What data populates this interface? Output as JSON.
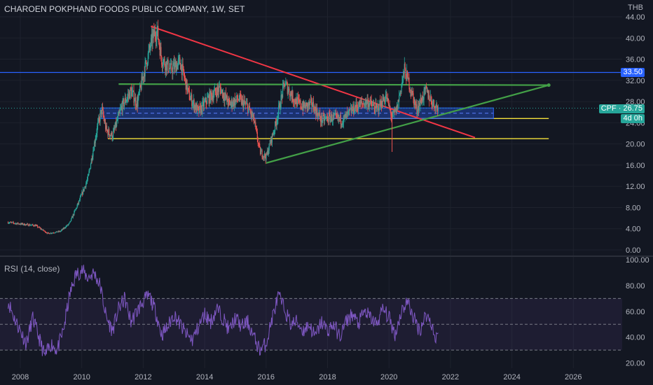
{
  "chart_title": "CHAROEN POKPHAND FOODS PUBLIC COMPANY, 1W, SET",
  "currency": "THB",
  "price_tag": "CPF · 26.75",
  "countdown_tag": "4d 0h",
  "level_tag": "33.50",
  "rsi_label": "RSI (14, close)",
  "colors": {
    "background": "#131722",
    "up": "#26a69a",
    "down": "#ef5350",
    "trend_red": "#f23645",
    "trend_green": "#43a047",
    "support": "#f5e13b",
    "level_line": "#2962ff",
    "zone": "#2962ff",
    "rsi": "#7e57c2"
  },
  "chart_data": [
    {
      "type": "candlestick",
      "title": "CHAROEN POKPHAND FOODS PUBLIC COMPANY, 1W, SET",
      "ylim": [
        0,
        44
      ],
      "yticks": [
        0,
        4,
        8,
        12,
        16,
        20,
        24,
        28,
        32,
        36,
        40,
        44
      ],
      "xlim": [
        2007.6,
        2027.0
      ],
      "xticks": [
        2008,
        2010,
        2012,
        2014,
        2016,
        2018,
        2020,
        2022,
        2024,
        2026
      ],
      "last_price": 26.75,
      "price_path": [
        [
          2007.6,
          5.2
        ],
        [
          2008.0,
          4.9
        ],
        [
          2008.5,
          4.6
        ],
        [
          2008.9,
          3.1
        ],
        [
          2009.3,
          3.5
        ],
        [
          2009.6,
          5.0
        ],
        [
          2009.9,
          9.0
        ],
        [
          2010.2,
          13.5
        ],
        [
          2010.5,
          23.0
        ],
        [
          2010.65,
          26.5
        ],
        [
          2010.8,
          22.5
        ],
        [
          2011.0,
          21.5
        ],
        [
          2011.3,
          27.0
        ],
        [
          2011.6,
          30.0
        ],
        [
          2011.8,
          27.5
        ],
        [
          2012.0,
          33.0
        ],
        [
          2012.3,
          40.0
        ],
        [
          2012.45,
          41.5
        ],
        [
          2012.6,
          36.0
        ],
        [
          2012.9,
          34.0
        ],
        [
          2013.2,
          35.5
        ],
        [
          2013.5,
          29.0
        ],
        [
          2013.8,
          26.0
        ],
        [
          2014.1,
          28.5
        ],
        [
          2014.5,
          30.5
        ],
        [
          2014.8,
          27.5
        ],
        [
          2015.1,
          28.5
        ],
        [
          2015.4,
          27.0
        ],
        [
          2015.6,
          24.5
        ],
        [
          2015.8,
          18.5
        ],
        [
          2016.0,
          17.5
        ],
        [
          2016.3,
          23.5
        ],
        [
          2016.6,
          31.5
        ],
        [
          2016.9,
          28.5
        ],
        [
          2017.2,
          27.0
        ],
        [
          2017.5,
          27.5
        ],
        [
          2017.8,
          24.5
        ],
        [
          2018.1,
          25.0
        ],
        [
          2018.5,
          24.5
        ],
        [
          2018.9,
          27.0
        ],
        [
          2019.3,
          28.0
        ],
        [
          2019.6,
          26.5
        ],
        [
          2019.9,
          29.0
        ],
        [
          2020.1,
          25.0
        ],
        [
          2020.25,
          26.5
        ],
        [
          2020.5,
          34.0
        ],
        [
          2020.65,
          31.5
        ],
        [
          2020.9,
          26.5
        ],
        [
          2021.2,
          30.0
        ],
        [
          2021.45,
          27.5
        ],
        [
          2021.6,
          26.75
        ]
      ],
      "horizontal_levels": [
        {
          "name": "resistance",
          "value": 33.5
        },
        {
          "name": "support",
          "value": 24.8
        },
        {
          "name": "support",
          "value": 21.0
        }
      ],
      "trendlines": [
        {
          "color": "red",
          "from": [
            2012.25,
            42.2
          ],
          "to": [
            2022.8,
            21.2
          ]
        },
        {
          "color": "green",
          "from": [
            2011.2,
            31.3
          ],
          "to": [
            2025.2,
            31.1
          ]
        },
        {
          "color": "green",
          "from": [
            2016.0,
            16.4
          ],
          "to": [
            2025.2,
            31.1
          ]
        }
      ],
      "zone": {
        "from": 2010.6,
        "to": 2023.4,
        "low": 24.8,
        "high": 26.8
      }
    },
    {
      "type": "line",
      "name": "RSI (14, close)",
      "ylim": [
        16,
        100
      ],
      "yticks": [
        20,
        40,
        60,
        80,
        100
      ],
      "bands": [
        30,
        70
      ],
      "midline": 50,
      "path": [
        [
          2007.6,
          68
        ],
        [
          2007.8,
          55
        ],
        [
          2008.0,
          45
        ],
        [
          2008.2,
          35
        ],
        [
          2008.4,
          55
        ],
        [
          2008.6,
          40
        ],
        [
          2008.8,
          25
        ],
        [
          2009.0,
          35
        ],
        [
          2009.2,
          30
        ],
        [
          2009.4,
          45
        ],
        [
          2009.6,
          72
        ],
        [
          2009.8,
          88
        ],
        [
          2010.0,
          92
        ],
        [
          2010.2,
          86
        ],
        [
          2010.4,
          90
        ],
        [
          2010.6,
          80
        ],
        [
          2010.8,
          55
        ],
        [
          2011.0,
          45
        ],
        [
          2011.2,
          62
        ],
        [
          2011.4,
          70
        ],
        [
          2011.6,
          52
        ],
        [
          2011.8,
          60
        ],
        [
          2012.0,
          68
        ],
        [
          2012.2,
          72
        ],
        [
          2012.4,
          60
        ],
        [
          2012.6,
          42
        ],
        [
          2012.8,
          48
        ],
        [
          2013.0,
          58
        ],
        [
          2013.2,
          50
        ],
        [
          2013.4,
          42
        ],
        [
          2013.6,
          38
        ],
        [
          2013.8,
          48
        ],
        [
          2014.0,
          58
        ],
        [
          2014.2,
          52
        ],
        [
          2014.4,
          62
        ],
        [
          2014.6,
          55
        ],
        [
          2014.8,
          45
        ],
        [
          2015.0,
          55
        ],
        [
          2015.2,
          48
        ],
        [
          2015.4,
          52
        ],
        [
          2015.6,
          40
        ],
        [
          2015.8,
          30
        ],
        [
          2016.0,
          35
        ],
        [
          2016.2,
          55
        ],
        [
          2016.4,
          72
        ],
        [
          2016.6,
          62
        ],
        [
          2016.8,
          50
        ],
        [
          2017.0,
          52
        ],
        [
          2017.2,
          45
        ],
        [
          2017.4,
          50
        ],
        [
          2017.6,
          40
        ],
        [
          2017.8,
          52
        ],
        [
          2018.0,
          45
        ],
        [
          2018.2,
          50
        ],
        [
          2018.4,
          40
        ],
        [
          2018.6,
          52
        ],
        [
          2018.8,
          58
        ],
        [
          2019.0,
          50
        ],
        [
          2019.2,
          60
        ],
        [
          2019.4,
          55
        ],
        [
          2019.6,
          50
        ],
        [
          2019.8,
          62
        ],
        [
          2020.0,
          55
        ],
        [
          2020.2,
          42
        ],
        [
          2020.4,
          60
        ],
        [
          2020.6,
          68
        ],
        [
          2020.8,
          55
        ],
        [
          2021.0,
          45
        ],
        [
          2021.2,
          58
        ],
        [
          2021.4,
          50
        ],
        [
          2021.5,
          38
        ],
        [
          2021.6,
          46
        ]
      ]
    }
  ]
}
